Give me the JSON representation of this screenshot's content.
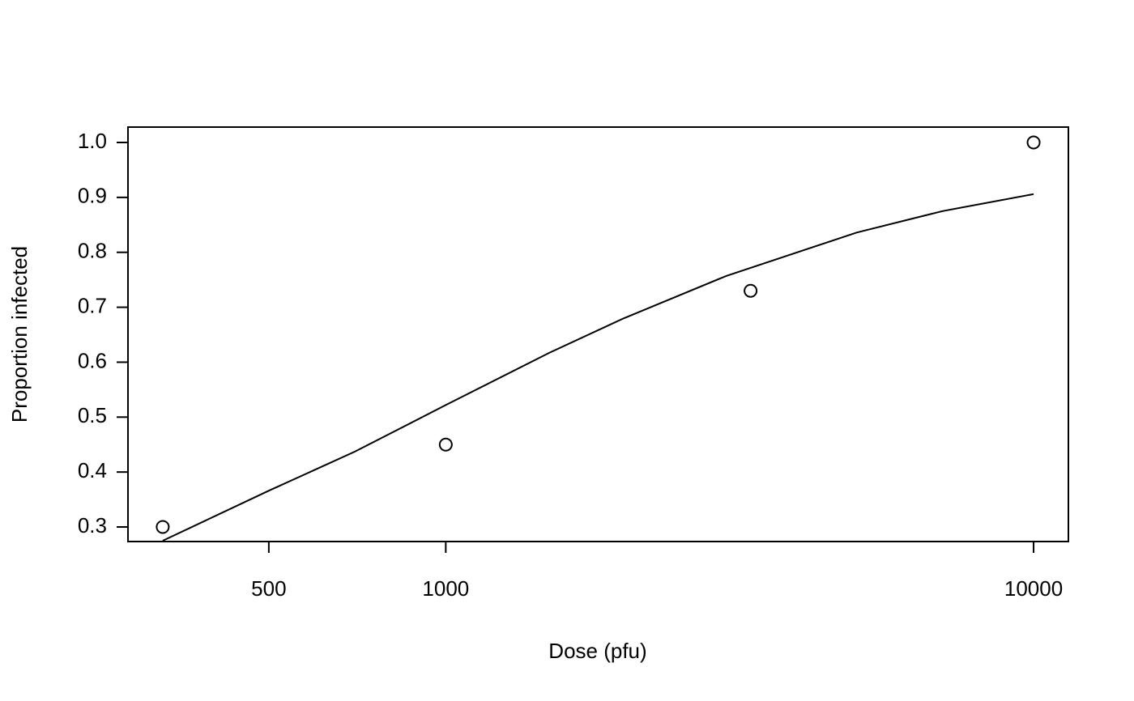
{
  "chart_data": {
    "type": "scatter",
    "x_label": "Dose (pfu)",
    "y_label": "Proportion infected",
    "x": [
      330,
      1000,
      3300,
      10000
    ],
    "values": [
      0.3,
      0.45,
      0.73,
      1.0
    ],
    "fit": {
      "x": [
        330,
        500,
        700,
        1000,
        1500,
        2000,
        3000,
        5000,
        7000,
        10000
      ],
      "values": [
        0.275,
        0.366,
        0.437,
        0.522,
        0.617,
        0.679,
        0.757,
        0.836,
        0.875,
        0.906
      ]
    },
    "xlim": [
      288,
      11460
    ],
    "ylim": [
      0.2735,
      1.028
    ],
    "x_log": true,
    "xticks": [
      500,
      1000,
      10000
    ],
    "yticks": [
      0.3,
      0.4,
      0.5,
      0.6,
      0.7,
      0.8,
      0.9,
      {
        "value": 1,
        "label": "1.0"
      }
    ],
    "color": "#000000"
  }
}
